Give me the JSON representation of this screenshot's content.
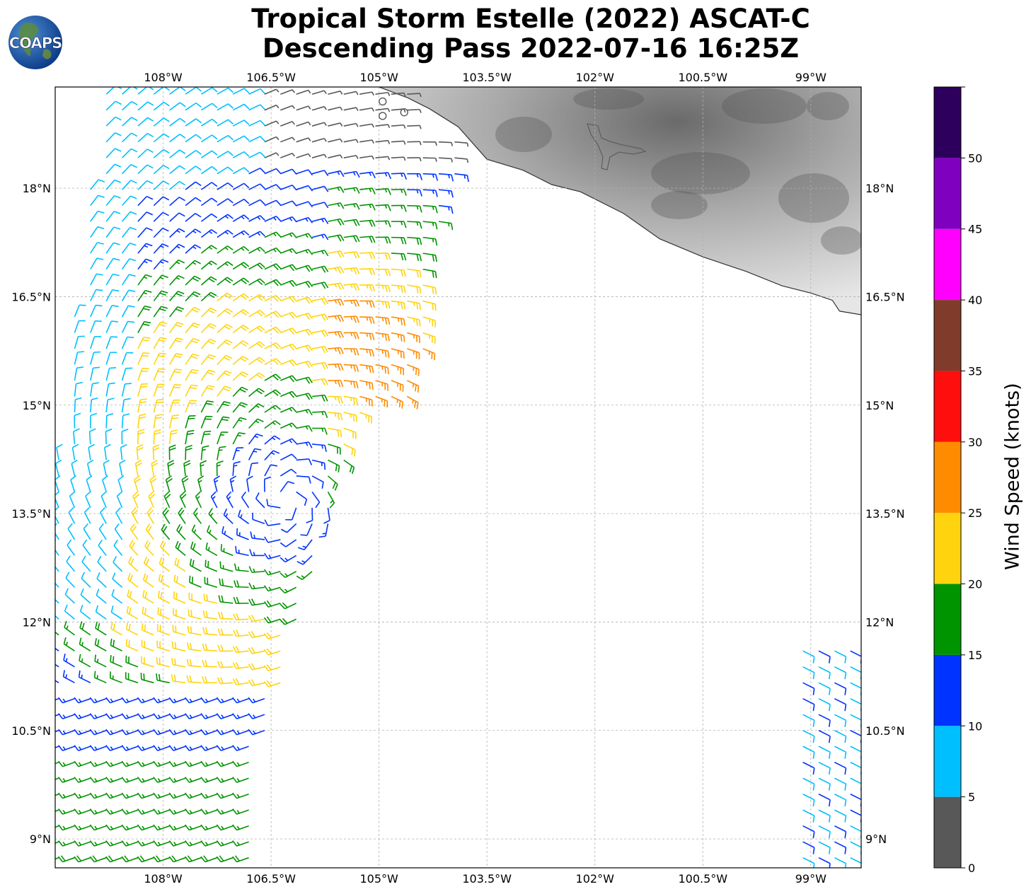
{
  "header": {
    "title_line1": "Tropical Storm Estelle (2022) ASCAT-C",
    "title_line2": "Descending Pass 2022-07-16 16:25Z"
  },
  "logo": {
    "text": "COAPS"
  },
  "map": {
    "lon_range": [
      -109.5,
      -98.3
    ],
    "lat_range": [
      8.6,
      19.4
    ],
    "lon_ticks": [
      {
        "value": -108,
        "label": "108°W"
      },
      {
        "value": -106.5,
        "label": "106.5°W"
      },
      {
        "value": -105,
        "label": "105°W"
      },
      {
        "value": -103.5,
        "label": "103.5°W"
      },
      {
        "value": -102,
        "label": "102°W"
      },
      {
        "value": -100.5,
        "label": "100.5°W"
      },
      {
        "value": -99,
        "label": "99°W"
      }
    ],
    "lat_ticks": [
      {
        "value": 18,
        "label": "18°N"
      },
      {
        "value": 16.5,
        "label": "16.5°N"
      },
      {
        "value": 15,
        "label": "15°N"
      },
      {
        "value": 13.5,
        "label": "13.5°N"
      },
      {
        "value": 12,
        "label": "12°N"
      },
      {
        "value": 10.5,
        "label": "10.5°N"
      },
      {
        "value": 9,
        "label": "9°N"
      }
    ],
    "gridlines": true,
    "storm_center": {
      "lon": -106.3,
      "lat": 13.7
    },
    "coastline": [
      [
        -105.0,
        19.4
      ],
      [
        -104.6,
        19.25
      ],
      [
        -104.3,
        19.1
      ],
      [
        -103.9,
        18.85
      ],
      [
        -103.5,
        18.4
      ],
      [
        -103.0,
        18.25
      ],
      [
        -102.6,
        18.05
      ],
      [
        -102.2,
        17.95
      ],
      [
        -101.6,
        17.65
      ],
      [
        -101.1,
        17.3
      ],
      [
        -100.5,
        17.05
      ],
      [
        -99.9,
        16.85
      ],
      [
        -99.4,
        16.65
      ],
      [
        -99.0,
        16.55
      ],
      [
        -98.7,
        16.45
      ],
      [
        -98.6,
        16.3
      ],
      [
        -98.3,
        16.25
      ]
    ],
    "wind_barbs_note": "",
    "colormap": "wind speed bins"
  },
  "colorbar": {
    "label": "Wind Speed (knots)",
    "min": 0,
    "max": 55,
    "bins": [
      {
        "from": 0,
        "to": 5,
        "color": "#585858"
      },
      {
        "from": 5,
        "to": 10,
        "color": "#00bfff"
      },
      {
        "from": 10,
        "to": 15,
        "color": "#0033ff"
      },
      {
        "from": 15,
        "to": 20,
        "color": "#009400"
      },
      {
        "from": 20,
        "to": 25,
        "color": "#ffd40f"
      },
      {
        "from": 25,
        "to": 30,
        "color": "#ff8c00"
      },
      {
        "from": 30,
        "to": 35,
        "color": "#ff0e0e"
      },
      {
        "from": 35,
        "to": 40,
        "color": "#813b2b"
      },
      {
        "from": 40,
        "to": 45,
        "color": "#ff00ff"
      },
      {
        "from": 45,
        "to": 50,
        "color": "#8000c0"
      },
      {
        "from": 50,
        "to": 55,
        "color": "#2e005e"
      }
    ],
    "ticks": [
      {
        "value": 0,
        "label": "0"
      },
      {
        "value": 5,
        "label": "5"
      },
      {
        "value": 10,
        "label": "10"
      },
      {
        "value": 15,
        "label": "15"
      },
      {
        "value": 20,
        "label": "20"
      },
      {
        "value": 25,
        "label": "25"
      },
      {
        "value": 30,
        "label": "30"
      },
      {
        "value": 35,
        "label": "35"
      },
      {
        "value": 40,
        "label": "40"
      },
      {
        "value": 45,
        "label": "45"
      },
      {
        "value": 50,
        "label": "50"
      }
    ]
  }
}
